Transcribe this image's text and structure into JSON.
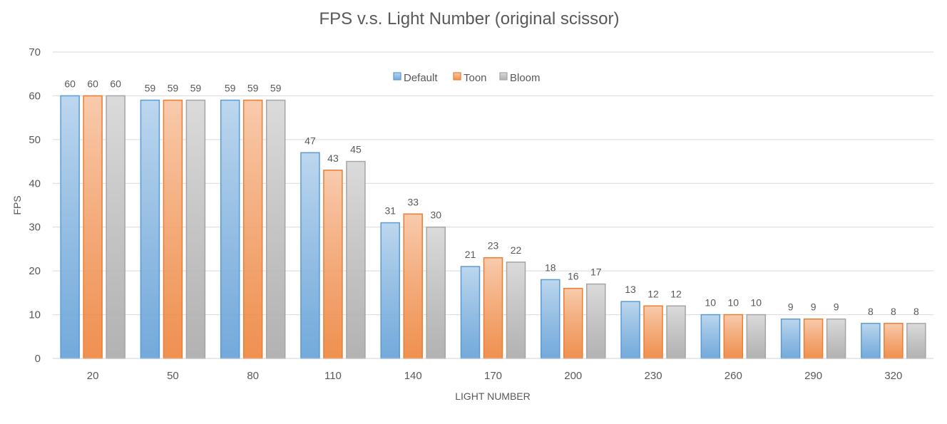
{
  "chart_data": {
    "type": "bar",
    "title": "FPS v.s. Light Number (original scissor)",
    "xlabel": "LIGHT NUMBER",
    "ylabel": "FPS",
    "ylim": [
      0,
      70
    ],
    "yticks": [
      "0",
      "10",
      "20",
      "30",
      "40",
      "50",
      "60",
      "70"
    ],
    "grid": true,
    "legend_position": "top-center",
    "categories": [
      "20",
      "50",
      "80",
      "110",
      "140",
      "170",
      "200",
      "230",
      "260",
      "290",
      "320"
    ],
    "series": [
      {
        "name": "Default",
        "color": "#5b9bd5",
        "values": [
          60,
          59,
          59,
          47,
          31,
          21,
          18,
          13,
          10,
          9,
          8
        ]
      },
      {
        "name": "Toon",
        "color": "#ed7d31",
        "values": [
          60,
          59,
          59,
          43,
          33,
          23,
          16,
          12,
          10,
          9,
          8
        ]
      },
      {
        "name": "Bloom",
        "color": "#a5a5a5",
        "values": [
          60,
          59,
          59,
          45,
          30,
          22,
          17,
          12,
          10,
          9,
          8
        ]
      }
    ]
  }
}
